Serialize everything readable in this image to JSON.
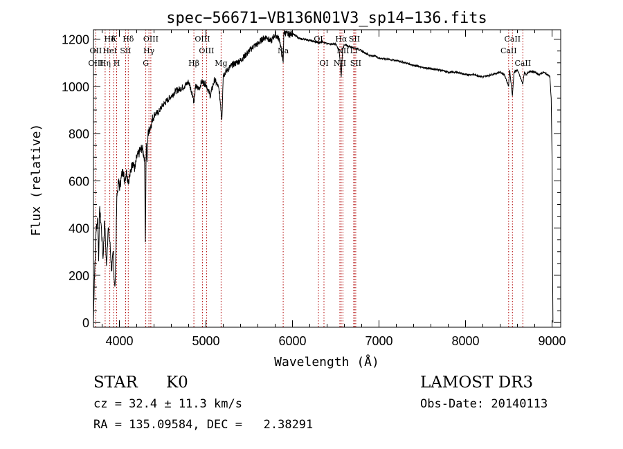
{
  "chart_data": {
    "type": "line",
    "title": "spec−56671−VB136N01V3_sp14−136.fits",
    "xlabel": "Wavelength (Å)",
    "ylabel": "Flux (relative)",
    "xlim": [
      3700,
      9100
    ],
    "ylim": [
      -20,
      1240
    ],
    "xticks": [
      4000,
      5000,
      6000,
      7000,
      8000,
      9000
    ],
    "yticks": [
      0,
      200,
      400,
      600,
      800,
      1000,
      1200
    ],
    "series": [
      {
        "name": "flux",
        "x": [
          3700,
          3710,
          3730,
          3750,
          3760,
          3770,
          3790,
          3810,
          3830,
          3850,
          3870,
          3890,
          3910,
          3930,
          3940,
          3950,
          3960,
          3970,
          3980,
          3990,
          4000,
          4020,
          4040,
          4060,
          4080,
          4100,
          4120,
          4150,
          4180,
          4200,
          4230,
          4260,
          4290,
          4300,
          4310,
          4320,
          4330,
          4350,
          4380,
          4400,
          4450,
          4500,
          4550,
          4600,
          4650,
          4700,
          4750,
          4800,
          4850,
          4862,
          4880,
          4920,
          4950,
          5000,
          5050,
          5100,
          5150,
          5170,
          5184,
          5200,
          5250,
          5300,
          5350,
          5400,
          5450,
          5500,
          5550,
          5600,
          5650,
          5700,
          5750,
          5800,
          5850,
          5893,
          5900,
          5950,
          6000,
          6050,
          6100,
          6150,
          6200,
          6250,
          6300,
          6350,
          6400,
          6450,
          6500,
          6540,
          6563,
          6580,
          6600,
          6650,
          6700,
          6750,
          6800,
          6850,
          6900,
          6950,
          7000,
          7100,
          7200,
          7300,
          7400,
          7500,
          7600,
          7700,
          7800,
          7900,
          8000,
          8100,
          8200,
          8300,
          8400,
          8450,
          8498,
          8510,
          8542,
          8560,
          8600,
          8662,
          8680,
          8700,
          8750,
          8800,
          8850,
          8900,
          8950,
          8975,
          8990,
          9000,
          9010
        ],
        "y": [
          0,
          180,
          390,
          440,
          260,
          480,
          410,
          270,
          430,
          240,
          400,
          340,
          220,
          300,
          180,
          160,
          300,
          540,
          560,
          600,
          570,
          610,
          650,
          600,
          640,
          600,
          620,
          680,
          650,
          700,
          720,
          740,
          700,
          340,
          760,
          680,
          800,
          820,
          860,
          880,
          890,
          920,
          940,
          960,
          980,
          990,
          1000,
          1020,
          960,
          930,
          1000,
          990,
          1020,
          1010,
          960,
          1030,
          990,
          920,
          860,
          1050,
          1070,
          1090,
          1100,
          1110,
          1130,
          1150,
          1170,
          1180,
          1200,
          1210,
          1190,
          1220,
          1200,
          1100,
          1230,
          1220,
          1225,
          1210,
          1200,
          1200,
          1195,
          1190,
          1185,
          1190,
          1180,
          1180,
          1180,
          1150,
          1040,
          1160,
          1175,
          1170,
          1165,
          1160,
          1150,
          1140,
          1130,
          1130,
          1120,
          1115,
          1110,
          1100,
          1090,
          1080,
          1075,
          1070,
          1060,
          1060,
          1050,
          1050,
          1040,
          1050,
          1060,
          1050,
          1000,
          1070,
          960,
          1060,
          1070,
          1010,
          1060,
          1050,
          1065,
          1060,
          1050,
          1060,
          1050,
          1040,
          950,
          700,
          0
        ]
      }
    ],
    "lines": [
      {
        "name": "Hδ",
        "wavelength": 3889,
        "row": 0
      },
      {
        "name": "K",
        "wavelength": 3934,
        "row": 0
      },
      {
        "name": "Hδ",
        "wavelength": 4102,
        "row": 0
      },
      {
        "name": "OIII",
        "wavelength": 4363,
        "row": 0
      },
      {
        "name": "OIII",
        "wavelength": 4959,
        "row": 0
      },
      {
        "name": "OI",
        "wavelength": 6300,
        "row": 0
      },
      {
        "name": "Hα",
        "wavelength": 6563,
        "row": 0
      },
      {
        "name": "SII",
        "wavelength": 6716,
        "row": 0
      },
      {
        "name": "CaII",
        "wavelength": 8542,
        "row": 0
      },
      {
        "name": "OII",
        "wavelength": 3727,
        "row": 1
      },
      {
        "name": "HeI",
        "wavelength": 3889,
        "row": 1
      },
      {
        "name": "SII",
        "wavelength": 4072,
        "row": 1
      },
      {
        "name": "Hγ",
        "wavelength": 4341,
        "row": 1
      },
      {
        "name": "OIII",
        "wavelength": 5007,
        "row": 1
      },
      {
        "name": "Na",
        "wavelength": 5893,
        "row": 1
      },
      {
        "name": "NII",
        "wavelength": 6583,
        "row": 1
      },
      {
        "name": "Li",
        "wavelength": 6708,
        "row": 1
      },
      {
        "name": "CaII",
        "wavelength": 8498,
        "row": 1
      },
      {
        "name": "OIII",
        "wavelength": 3727,
        "row": 2
      },
      {
        "name": "Hη",
        "wavelength": 3835,
        "row": 2
      },
      {
        "name": "H",
        "wavelength": 3968,
        "row": 2
      },
      {
        "name": "G",
        "wavelength": 4305,
        "row": 2
      },
      {
        "name": "Hβ",
        "wavelength": 4861,
        "row": 2
      },
      {
        "name": "Mg",
        "wavelength": 5175,
        "row": 2
      },
      {
        "name": "OI",
        "wavelength": 6364,
        "row": 2
      },
      {
        "name": "NII",
        "wavelength": 6548,
        "row": 2
      },
      {
        "name": "SII",
        "wavelength": 6731,
        "row": 2
      },
      {
        "name": "CaII",
        "wavelength": 8662,
        "row": 2
      }
    ],
    "line_markers": [
      3727,
      3835,
      3889,
      3934,
      3968,
      4072,
      4102,
      4305,
      4341,
      4363,
      4861,
      4959,
      5007,
      5175,
      5893,
      6300,
      6364,
      6548,
      6563,
      6583,
      6708,
      6716,
      6731,
      8498,
      8542,
      8662
    ]
  },
  "info": {
    "class": "STAR",
    "subclass": "K0",
    "survey": "LAMOST DR3",
    "cz": "cz = 32.4 ± 11.3 km/s",
    "obs_date": "Obs-Date: 20140113",
    "radec": "RA = 135.09584, DEC =   2.38291"
  }
}
